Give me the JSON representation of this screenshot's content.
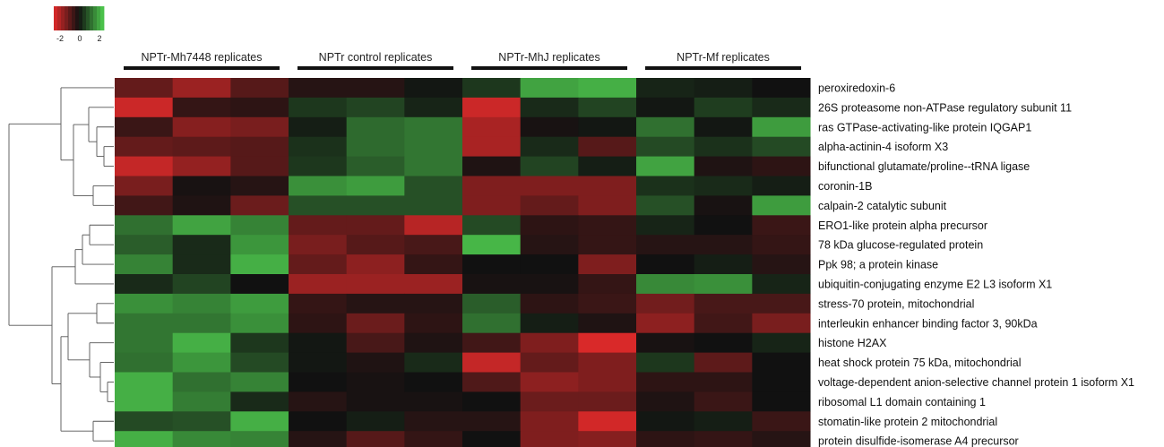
{
  "chart_data": {
    "type": "heatmap",
    "color_scale": {
      "low": "#e02a2a",
      "mid": "#111111",
      "high": "#4fcf4f",
      "ticks": [
        "-2",
        "0",
        "2"
      ],
      "range": [
        -3,
        3
      ]
    },
    "groups": [
      {
        "label": "NPTr-Mh7448 replicates",
        "n": 3
      },
      {
        "label": "NPTr control replicates",
        "n": 3
      },
      {
        "label": "NPTr-MhJ replicates",
        "n": 3
      },
      {
        "label": "NPTr-Mf replicates",
        "n": 3
      }
    ],
    "rows": [
      "peroxiredoxin-6",
      "26S proteasome non-ATPase regulatory subunit 11",
      "ras GTPase-activating-like protein IQGAP1",
      "alpha-actinin-4 isoform X3",
      "bifunctional glutamate/proline--tRNA ligase",
      "coronin-1B",
      "calpain-2 catalytic subunit",
      "ERO1-like protein alpha precursor",
      "78 kDa glucose-regulated protein",
      "Ppk 98; a protein kinase",
      "ubiquitin-conjugating enzyme E2 L3 isoform X1",
      "stress-70 protein, mitochondrial",
      "interleukin enhancer binding factor 3, 90kDa",
      "histone H2AX",
      "heat shock protein 75 kDa, mitochondrial",
      "voltage-dependent anion-selective channel protein 1 isoform X1",
      "ribosomal L1 domain containing 1",
      "stomatin-like protein 2 mitochondrial",
      "protein disulfide-isomerase A4 precursor"
    ],
    "values": [
      [
        -1.2,
        -2.0,
        -1.0,
        -0.3,
        -0.3,
        0.1,
        0.6,
        2.3,
        2.5,
        0.3,
        0.2,
        0.0
      ],
      [
        -2.7,
        -0.5,
        -0.4,
        0.6,
        0.8,
        0.3,
        -2.7,
        0.4,
        0.8,
        0.1,
        0.7,
        0.4
      ],
      [
        -0.6,
        -1.7,
        -1.5,
        0.2,
        1.4,
        1.6,
        -2.2,
        -0.1,
        0.1,
        1.5,
        0.1,
        2.2
      ],
      [
        -1.2,
        -1.1,
        -1.0,
        0.5,
        1.4,
        1.6,
        -2.2,
        0.4,
        -1.0,
        0.9,
        0.5,
        0.9
      ],
      [
        -2.6,
        -1.9,
        -1.0,
        0.6,
        1.2,
        1.6,
        -0.2,
        0.8,
        0.2,
        2.3,
        -0.2,
        -0.4
      ],
      [
        -1.5,
        -0.1,
        -0.3,
        2.0,
        2.2,
        1.0,
        -1.6,
        -1.6,
        -1.6,
        0.5,
        0.4,
        0.2
      ],
      [
        -0.7,
        -0.2,
        -1.3,
        1.0,
        1.0,
        1.0,
        -1.6,
        -1.2,
        -1.6,
        1.0,
        -0.1,
        2.2
      ],
      [
        1.5,
        2.3,
        1.8,
        -1.2,
        -1.2,
        -2.4,
        0.9,
        -0.4,
        -0.5,
        0.3,
        0.0,
        -0.6
      ],
      [
        1.2,
        0.4,
        2.1,
        -1.5,
        -1.0,
        -0.8,
        2.6,
        -0.3,
        -0.5,
        -0.3,
        -0.3,
        -0.5
      ],
      [
        1.8,
        0.4,
        2.5,
        -1.2,
        -1.8,
        -0.5,
        0.0,
        0.0,
        -1.6,
        0.0,
        0.2,
        -0.3
      ],
      [
        0.4,
        0.8,
        0.0,
        -2.0,
        -2.0,
        -2.0,
        -0.1,
        -0.1,
        -0.5,
        1.9,
        2.0,
        0.3
      ],
      [
        2.0,
        1.8,
        2.2,
        -0.5,
        -0.3,
        -0.3,
        1.2,
        -0.4,
        -0.6,
        -1.4,
        -0.8,
        -0.8
      ],
      [
        1.6,
        1.6,
        2.0,
        -0.4,
        -1.3,
        -0.4,
        1.5,
        0.2,
        -0.2,
        -1.8,
        -0.7,
        -1.5
      ],
      [
        1.6,
        2.5,
        0.6,
        0.1,
        -0.8,
        -0.2,
        -0.7,
        -1.6,
        -2.9,
        -0.1,
        0.0,
        0.3
      ],
      [
        1.5,
        2.1,
        0.9,
        0.1,
        -0.2,
        0.4,
        -2.6,
        -1.2,
        -1.6,
        0.6,
        -1.1,
        0.0
      ],
      [
        2.5,
        1.5,
        1.8,
        0.0,
        -0.1,
        0.0,
        -0.9,
        -1.8,
        -1.6,
        -0.4,
        -0.4,
        0.0
      ],
      [
        2.5,
        1.7,
        0.4,
        -0.3,
        -0.1,
        -0.1,
        0.0,
        -1.3,
        -1.3,
        -0.2,
        -0.6,
        0.0
      ],
      [
        0.9,
        1.0,
        2.5,
        0.0,
        0.2,
        -0.3,
        -0.3,
        -1.6,
        -2.8,
        0.1,
        0.2,
        -0.6
      ],
      [
        2.5,
        1.9,
        1.8,
        -0.3,
        -1.0,
        -0.5,
        0.0,
        -1.6,
        -1.7,
        -0.4,
        -0.5,
        -0.3
      ]
    ],
    "dendrogram_order": [
      0,
      1,
      2,
      3,
      4,
      5,
      6,
      7,
      8,
      9,
      10,
      11,
      12,
      13,
      14,
      15,
      16,
      17,
      18
    ]
  }
}
